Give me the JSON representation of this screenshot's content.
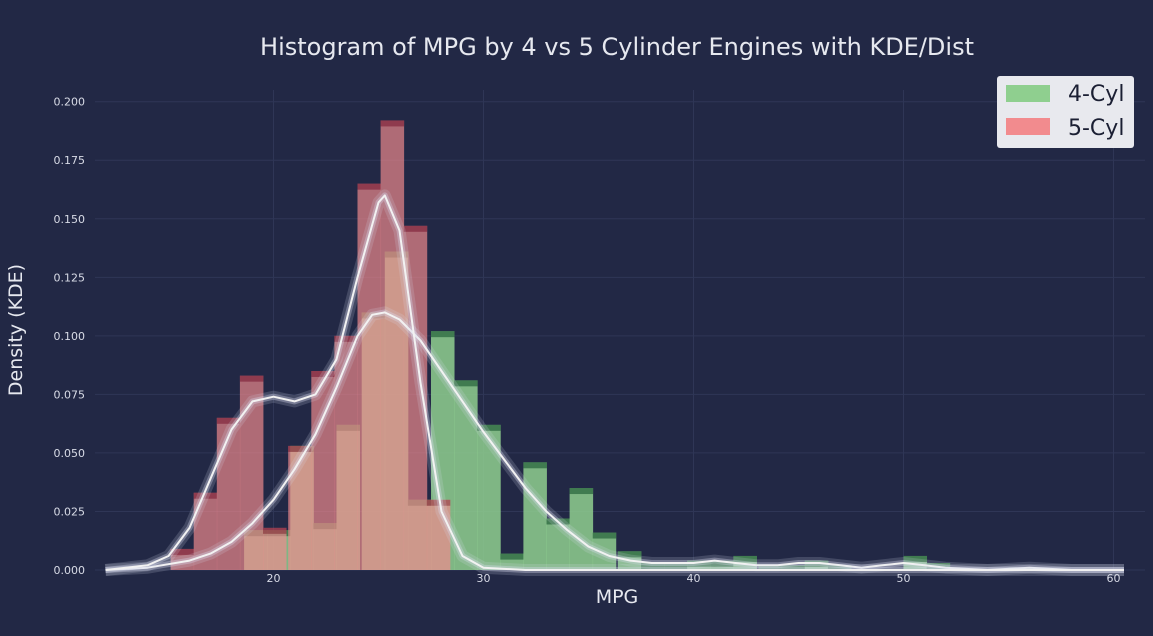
{
  "chart_data": {
    "type": "histogram",
    "title": "Histogram of MPG by 4 vs 5 Cylinder Engines with KDE/Dist",
    "xlabel": "MPG",
    "ylabel": "Density (KDE)",
    "xlim": [
      11.5,
      61.5
    ],
    "ylim": [
      0,
      0.205
    ],
    "x_ticks": [
      "20",
      "30",
      "40",
      "50",
      "60"
    ],
    "y_ticks": [
      "0.000",
      "0.025",
      "0.050",
      "0.075",
      "0.100",
      "0.125",
      "0.150",
      "0.175",
      "0.200"
    ],
    "grid": true,
    "legend_position": "top-right",
    "colors": {
      "background": "#222845",
      "grid": "#2f3656",
      "four_cyl_bar": "#8fcf8f",
      "four_cyl_dark": "#0d4a26",
      "five_cyl_bar": "#f28b8e",
      "five_cyl_dark": "#8a1028",
      "overlap": "#c37d55",
      "kde_line": "#f2f2f2"
    },
    "series": [
      {
        "name": "4-Cyl",
        "bin_width": 1.12,
        "bins": [
          [
            18.6,
            0.017
          ],
          [
            19.7,
            0.017
          ],
          [
            20.8,
            0.053
          ],
          [
            21.9,
            0.02
          ],
          [
            23.0,
            0.062
          ],
          [
            24.2,
            0.11
          ],
          [
            25.3,
            0.136
          ],
          [
            26.4,
            0.03
          ],
          [
            27.5,
            0.102
          ],
          [
            28.6,
            0.081
          ],
          [
            29.7,
            0.062
          ],
          [
            30.8,
            0.007
          ],
          [
            31.9,
            0.046
          ],
          [
            33.0,
            0.022
          ],
          [
            34.1,
            0.035
          ],
          [
            35.2,
            0.016
          ],
          [
            36.4,
            0.008
          ],
          [
            37.5,
            0.003
          ],
          [
            38.6,
            0.003
          ],
          [
            39.7,
            0.004
          ],
          [
            40.8,
            0.004
          ],
          [
            41.9,
            0.006
          ],
          [
            43.1,
            0.002
          ],
          [
            44.2,
            0.002
          ],
          [
            45.3,
            0.004
          ],
          [
            46.4,
            0.002
          ],
          [
            50.0,
            0.006
          ],
          [
            51.1,
            0.003
          ],
          [
            55.0,
            0.001
          ]
        ],
        "kde": [
          [
            12,
            0.0
          ],
          [
            14,
            0.001
          ],
          [
            16,
            0.004
          ],
          [
            17,
            0.007
          ],
          [
            18,
            0.012
          ],
          [
            19,
            0.02
          ],
          [
            20,
            0.03
          ],
          [
            21,
            0.043
          ],
          [
            22,
            0.058
          ],
          [
            23,
            0.078
          ],
          [
            24,
            0.1
          ],
          [
            24.7,
            0.109
          ],
          [
            25.3,
            0.11
          ],
          [
            26,
            0.107
          ],
          [
            27,
            0.098
          ],
          [
            28,
            0.085
          ],
          [
            29,
            0.072
          ],
          [
            30,
            0.059
          ],
          [
            31,
            0.047
          ],
          [
            32,
            0.035
          ],
          [
            33,
            0.025
          ],
          [
            34,
            0.017
          ],
          [
            35,
            0.01
          ],
          [
            36,
            0.006
          ],
          [
            37,
            0.004
          ],
          [
            38,
            0.003
          ],
          [
            39,
            0.003
          ],
          [
            40,
            0.003
          ],
          [
            41,
            0.004
          ],
          [
            42,
            0.003
          ],
          [
            43,
            0.002
          ],
          [
            44,
            0.002
          ],
          [
            45,
            0.003
          ],
          [
            46,
            0.003
          ],
          [
            47,
            0.002
          ],
          [
            48,
            0.001
          ],
          [
            49,
            0.002
          ],
          [
            50,
            0.003
          ],
          [
            51,
            0.002
          ],
          [
            52,
            0.001
          ],
          [
            54,
            0.0
          ],
          [
            56,
            0.001
          ],
          [
            58,
            0.0
          ],
          [
            60.5,
            0.0
          ]
        ]
      },
      {
        "name": "5-Cyl",
        "bin_width": 1.12,
        "bins": [
          [
            15.1,
            0.009
          ],
          [
            16.2,
            0.033
          ],
          [
            17.3,
            0.065
          ],
          [
            18.4,
            0.083
          ],
          [
            19.5,
            0.018
          ],
          [
            20.7,
            0.053
          ],
          [
            21.8,
            0.085
          ],
          [
            22.9,
            0.1
          ],
          [
            24.0,
            0.165
          ],
          [
            25.1,
            0.192
          ],
          [
            26.2,
            0.147
          ],
          [
            27.3,
            0.03
          ]
        ],
        "kde": [
          [
            12,
            0.0
          ],
          [
            14,
            0.002
          ],
          [
            15,
            0.006
          ],
          [
            16,
            0.018
          ],
          [
            17,
            0.039
          ],
          [
            18,
            0.06
          ],
          [
            19,
            0.072
          ],
          [
            20,
            0.074
          ],
          [
            21,
            0.072
          ],
          [
            22,
            0.075
          ],
          [
            23,
            0.09
          ],
          [
            24,
            0.125
          ],
          [
            25,
            0.157
          ],
          [
            25.3,
            0.16
          ],
          [
            26,
            0.145
          ],
          [
            27,
            0.08
          ],
          [
            28,
            0.025
          ],
          [
            29,
            0.006
          ],
          [
            30,
            0.001
          ],
          [
            32,
            0.0
          ],
          [
            60.5,
            0.0
          ]
        ]
      }
    ],
    "legend": {
      "entries": [
        {
          "label": "4-Cyl",
          "color": "#8fcf8f"
        },
        {
          "label": "5-Cyl",
          "color": "#f28b8e"
        }
      ]
    }
  }
}
